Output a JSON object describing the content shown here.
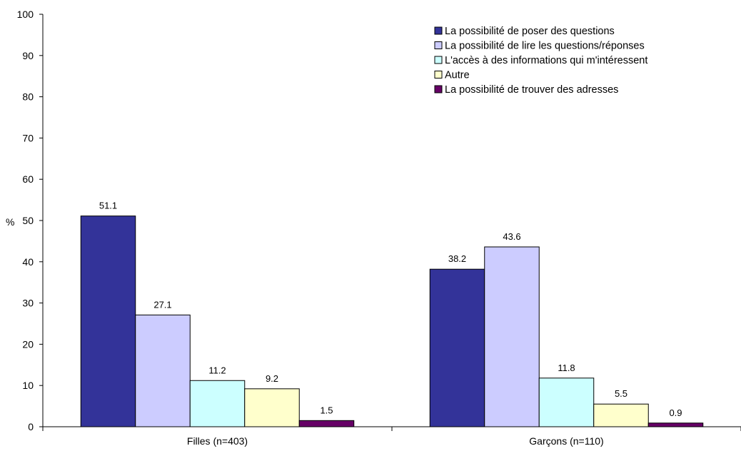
{
  "chart_data": {
    "type": "bar",
    "ylabel": "%",
    "xlabel": "",
    "ylim": [
      0,
      100
    ],
    "yticks": [
      0,
      10,
      20,
      30,
      40,
      50,
      60,
      70,
      80,
      90,
      100
    ],
    "grid": false,
    "legend_position": "top-right",
    "categories": [
      "Filles (n=403)",
      "Garçons (n=110)"
    ],
    "series": [
      {
        "name": "La possibilité de poser des questions",
        "color": "#333399",
        "values": [
          51.1,
          38.2
        ],
        "labels": [
          "51.1",
          "38.2"
        ]
      },
      {
        "name": "La possibilité de lire les questions/réponses",
        "color": "#CCCCFF",
        "values": [
          27.1,
          43.6
        ],
        "labels": [
          "27.1",
          "43.6"
        ]
      },
      {
        "name": "L'accès à des informations qui m'intéressent",
        "color": "#CCFFFF",
        "values": [
          11.2,
          11.8
        ],
        "labels": [
          "11.2",
          "11.8"
        ]
      },
      {
        "name": "Autre",
        "color": "#FFFFCC",
        "values": [
          9.2,
          5.5
        ],
        "labels": [
          "9.2",
          "5.5"
        ]
      },
      {
        "name": "La possibilité de trouver des adresses",
        "color": "#660066",
        "values": [
          1.5,
          0.9
        ],
        "labels": [
          "1.5",
          "0.9"
        ]
      }
    ]
  }
}
